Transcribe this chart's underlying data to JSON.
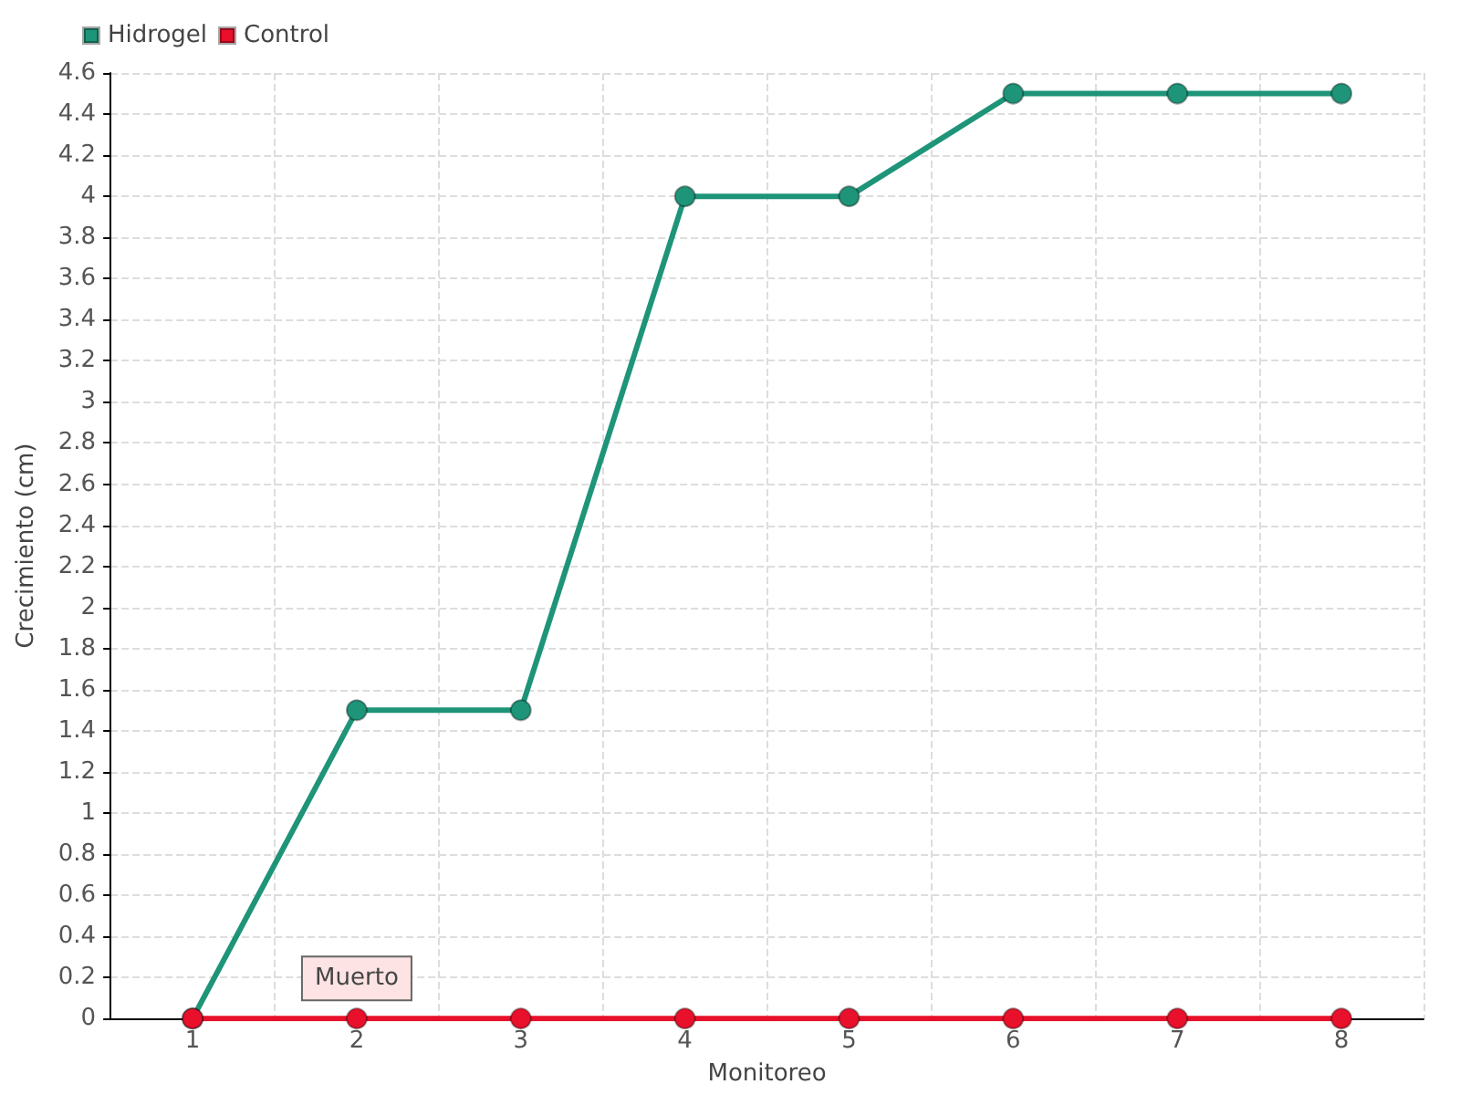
{
  "chart_data": {
    "type": "line",
    "xlabel": "Monitoreo",
    "ylabel": "Crecimiento (cm)",
    "categories": [
      "1",
      "2",
      "3",
      "4",
      "5",
      "6",
      "7",
      "8"
    ],
    "series": [
      {
        "name": "Hidrogel",
        "color": "#1e9478",
        "values": [
          0,
          1.5,
          1.5,
          4,
          4,
          4.5,
          4.5,
          4.5
        ]
      },
      {
        "name": "Control",
        "color": "#e8102a",
        "values": [
          0,
          0,
          0,
          0,
          0,
          0,
          0,
          0
        ]
      }
    ],
    "ylim": [
      0,
      4.6
    ],
    "yticks": [
      0,
      0.2,
      0.4,
      0.6,
      0.8,
      1,
      1.2,
      1.4,
      1.6,
      1.8,
      2,
      2.2,
      2.4,
      2.6,
      2.8,
      3,
      3.2,
      3.4,
      3.6,
      3.8,
      4,
      4.2,
      4.4,
      4.6
    ],
    "annotations": [
      {
        "text": "Muerto",
        "x": "2",
        "y": 0
      }
    ],
    "grid": true,
    "legend": "top left",
    "marker": "circle"
  }
}
